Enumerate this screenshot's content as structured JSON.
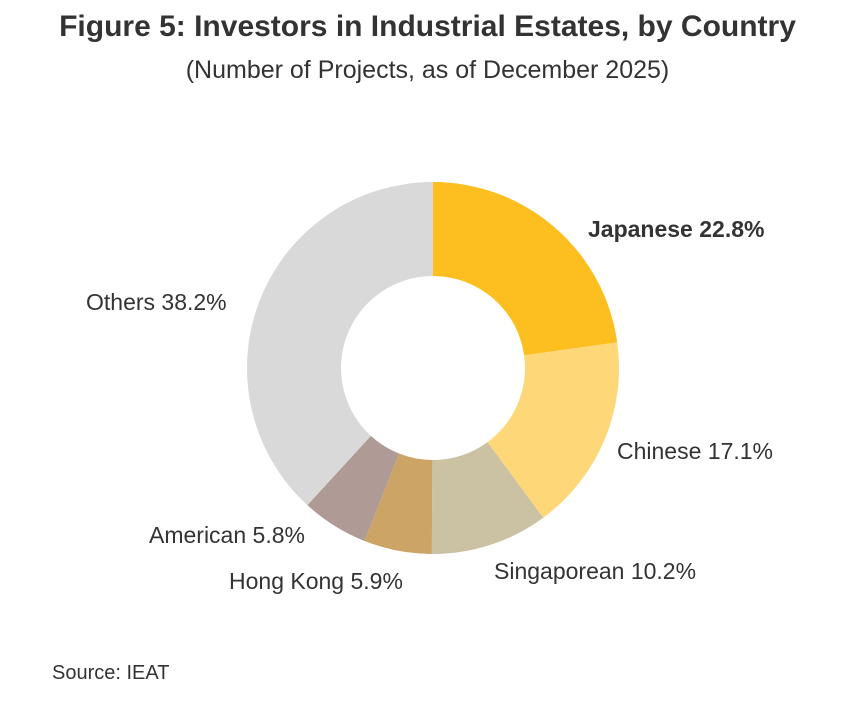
{
  "title": "Figure 5: Investors in Industrial Estates, by Country",
  "subtitle": "(Number of Projects, as of December 2025)",
  "source": "Source: IEAT",
  "chart_data": {
    "type": "pie",
    "variant": "donut",
    "title": "Figure 5: Investors in Industrial Estates, by Country",
    "subtitle": "(Number of Projects, as of December 2025)",
    "unit": "%",
    "slices": [
      {
        "name": "Japanese",
        "value": 22.8,
        "label": "Japanese 22.8%",
        "color": "#FDBE1F",
        "bold": true
      },
      {
        "name": "Chinese",
        "value": 17.1,
        "label": "Chinese 17.1%",
        "color": "#FED878",
        "bold": false
      },
      {
        "name": "Singaporean",
        "value": 10.2,
        "label": "Singaporean 10.2%",
        "color": "#CBC2A4",
        "bold": false
      },
      {
        "name": "Hong Kong",
        "value": 5.9,
        "label": "Hong Kong 5.9%",
        "color": "#CCA466",
        "bold": false
      },
      {
        "name": "American",
        "value": 5.8,
        "label": "American 5.8%",
        "color": "#B09A95",
        "bold": false
      },
      {
        "name": "Others",
        "value": 38.2,
        "label": "Others 38.2%",
        "color": "#D9D9D9",
        "bold": false
      }
    ],
    "start_angle": "12 o'clock",
    "direction": "clockwise",
    "legend": "none (direct labels)"
  }
}
